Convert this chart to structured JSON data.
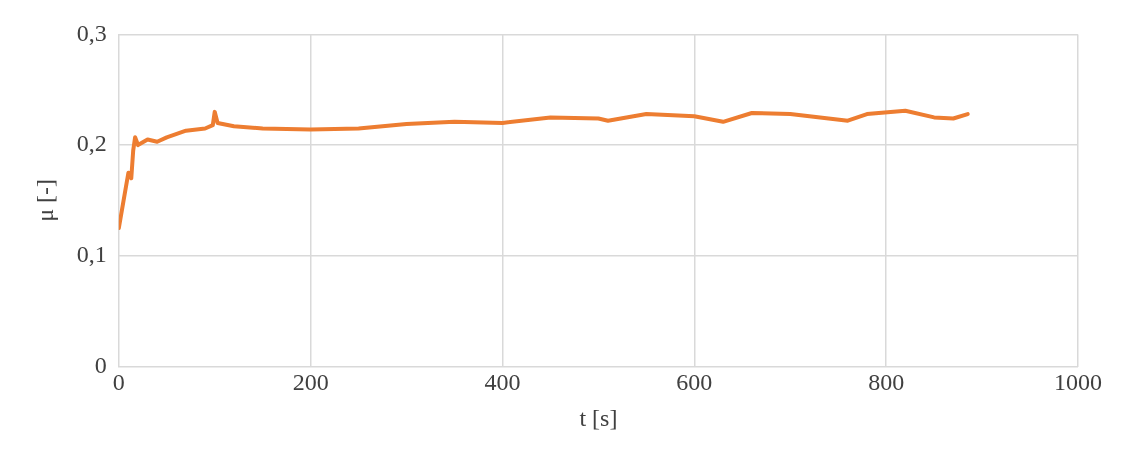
{
  "chart_data": {
    "type": "line",
    "xlabel": "t [s]",
    "ylabel": "μ [-]",
    "x": [
      0,
      5,
      10,
      13,
      15,
      17,
      20,
      30,
      40,
      50,
      70,
      90,
      98,
      100,
      103,
      120,
      150,
      200,
      250,
      300,
      350,
      400,
      450,
      500,
      510,
      550,
      600,
      630,
      660,
      700,
      740,
      760,
      780,
      820,
      850,
      870,
      885
    ],
    "series": [
      {
        "color": "#ed7d31",
        "values": [
          0.125,
          0.15,
          0.175,
          0.17,
          0.195,
          0.207,
          0.2,
          0.205,
          0.203,
          0.207,
          0.213,
          0.215,
          0.218,
          0.23,
          0.22,
          0.217,
          0.215,
          0.214,
          0.215,
          0.219,
          0.221,
          0.22,
          0.225,
          0.224,
          0.222,
          0.228,
          0.226,
          0.221,
          0.229,
          0.228,
          0.224,
          0.222,
          0.228,
          0.231,
          0.225,
          0.224,
          0.228
        ]
      }
    ],
    "xlim": [
      0,
      1000
    ],
    "xticks": [
      0,
      200,
      400,
      600,
      800,
      1000
    ],
    "ylim": [
      0,
      0.3
    ],
    "yticks": [
      {
        "value": 0,
        "label": "0"
      },
      {
        "value": 0.1,
        "label": "0,1"
      },
      {
        "value": 0.2,
        "label": "0,2"
      },
      {
        "value": 0.3,
        "label": "0,3"
      }
    ],
    "grid": true,
    "legend": false,
    "marker": "none",
    "line_style": "solid"
  }
}
